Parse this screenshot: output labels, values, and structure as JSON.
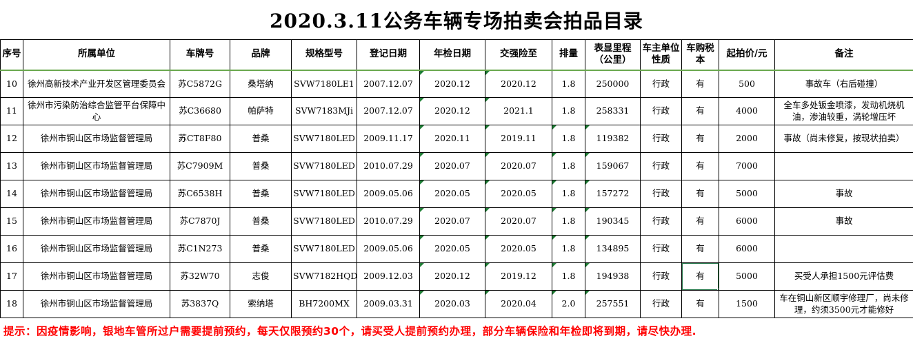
{
  "title": "2020.3.11公务车辆专场拍卖会拍品目录",
  "footer_note": "提示：因疫情影响，银地车管所过户需要提前预约，每天仅限预约30个，请买受人提前预约办理，部分车辆保险和年检即将到期，请尽快办理.",
  "colors": {
    "header_divider_green": "#6aa84f",
    "error_indicator_green": "#1e7b34",
    "selection_green": "#217346",
    "note_red": "#ff0000"
  },
  "table": {
    "columns": [
      "序号",
      "所属单位",
      "车牌号",
      "品牌",
      "规格型号",
      "登记日期",
      "年检日期",
      "交强险至",
      "排量",
      "表显里程（公里）",
      "车主单位性质",
      "车购税本",
      "起拍价/元",
      "备注"
    ],
    "column_keys": [
      "index",
      "unit",
      "plate",
      "brand",
      "model",
      "reg-date",
      "inspection-date",
      "insurance-until",
      "displacement",
      "mileage",
      "owner-type",
      "tax-book",
      "start-price",
      "remarks"
    ],
    "selected_cell": {
      "row_index": 7,
      "col_index": 11
    },
    "rows": [
      {
        "cells": [
          "10",
          "徐州高新技术产业开发区管理委员会",
          "苏C5872G",
          "桑塔纳",
          "SVW7180LE1",
          "2007.12.07",
          "2020.12",
          "2020.12",
          "1.8",
          "250000",
          "行政",
          "有",
          "500",
          "事故车（右后碰撞）"
        ],
        "error_cols": [
          6,
          7
        ]
      },
      {
        "cells": [
          "11",
          "徐州市污染防治综合监管平台保障中心",
          "苏C36680",
          "帕萨特",
          "SVW7183MJi",
          "2007.12.07",
          "2020.12",
          "2021.1",
          "1.8",
          "258331",
          "行政",
          "有",
          "4000",
          "全车多处钣金喷漆，发动机烧机油，渗油较重，涡轮增压坏"
        ],
        "error_cols": [
          6,
          7
        ]
      },
      {
        "cells": [
          "12",
          "徐州市铜山区市场监督管理局",
          "苏CT8F80",
          "普桑",
          "SVW7180LED",
          "2009.11.17",
          "2020.11",
          "2019.11",
          "1.8",
          "119382",
          "行政",
          "有",
          "2000",
          "事故（尚未修复，按现状拍卖）"
        ],
        "error_cols": [
          6,
          7,
          8,
          9
        ]
      },
      {
        "cells": [
          "13",
          "徐州市铜山区市场监督管理局",
          "苏C7909M",
          "普桑",
          "SVW7180LED",
          "2010.07.29",
          "2020.07",
          "2020.07",
          "1.8",
          "159067",
          "行政",
          "有",
          "7000",
          ""
        ],
        "error_cols": [
          6,
          7,
          8,
          9
        ]
      },
      {
        "cells": [
          "14",
          "徐州市铜山区市场监督管理局",
          "苏C6538H",
          "普桑",
          "SVW7180LED",
          "2009.05.06",
          "2020.05",
          "2020.05",
          "1.8",
          "157272",
          "行政",
          "有",
          "5000",
          "事故"
        ],
        "error_cols": [
          6,
          7,
          8,
          9
        ]
      },
      {
        "cells": [
          "15",
          "徐州市铜山区市场监督管理局",
          "苏C7870J",
          "普桑",
          "SVW7180LED",
          "2010.07.29",
          "2020.07",
          "2020.07",
          "1.8",
          "190345",
          "行政",
          "有",
          "6000",
          "事故"
        ],
        "error_cols": [
          6,
          7,
          8,
          9
        ]
      },
      {
        "cells": [
          "16",
          "徐州市铜山区市场监督管理局",
          "苏C1N273",
          "普桑",
          "SVW7180LED",
          "2009.05.06",
          "2020.05",
          "2020.05",
          "1.8",
          "134895",
          "行政",
          "有",
          "6000",
          ""
        ],
        "error_cols": [
          6,
          7,
          8,
          9
        ]
      },
      {
        "cells": [
          "17",
          "徐州市铜山区市场监督管理局",
          "苏32W70",
          "志俊",
          "SVW7182HQD",
          "2009.12.03",
          "2020.12",
          "2019.12",
          "1.8",
          "194938",
          "行政",
          "有",
          "5000",
          "买受人承担1500元评估费"
        ],
        "error_cols": [
          6,
          7,
          8,
          9
        ]
      },
      {
        "cells": [
          "18",
          "徐州市铜山区市场监督管理局",
          "苏3837Q",
          "索纳塔",
          "BH7200MX",
          "2009.03.31",
          "2020.03",
          "2020.04",
          "2.0",
          "257551",
          "行政",
          "有",
          "1500",
          "车在铜山新区顺宇修理厂，尚未修理，约须3500元才能修好"
        ],
        "error_cols": [
          6,
          7,
          8,
          9
        ]
      }
    ]
  }
}
